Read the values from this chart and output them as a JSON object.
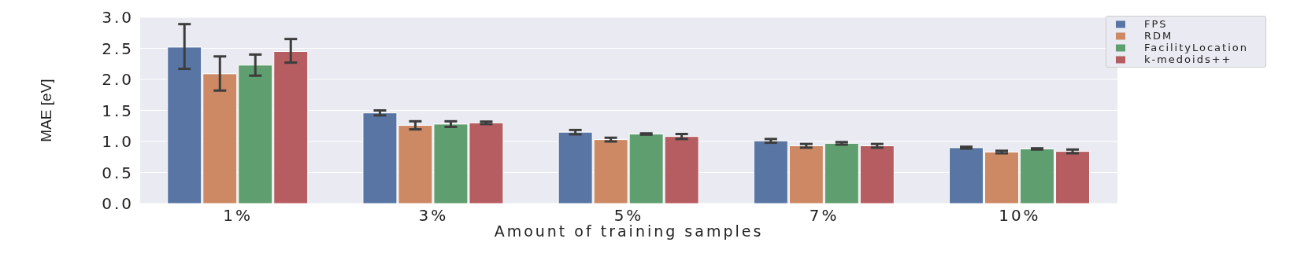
{
  "chart_data": {
    "type": "bar",
    "xlabel": "Amount of training samples",
    "ylabel": "MAE [eV]",
    "categories": [
      "1%",
      "3%",
      "5%",
      "7%",
      "10%"
    ],
    "series": [
      {
        "name": "FPS",
        "color": "#5875a4",
        "values": [
          2.52,
          1.46,
          1.15,
          1.01,
          0.9
        ],
        "errors": [
          [
            2.17,
            2.89
          ],
          0.04,
          0.035,
          0.03,
          0.015
        ]
      },
      {
        "name": "RDM",
        "color": "#cc8963",
        "values": [
          2.09,
          1.26,
          1.03,
          0.93,
          0.83
        ],
        "errors": [
          [
            1.82,
            2.37
          ],
          0.065,
          0.03,
          0.03,
          0.02
        ]
      },
      {
        "name": "FacilityLocation",
        "color": "#5f9e6e",
        "values": [
          2.23,
          1.28,
          1.12,
          0.97,
          0.88
        ],
        "errors": [
          [
            2.06,
            2.4
          ],
          0.045,
          0.01,
          0.02,
          0.01
        ]
      },
      {
        "name": "k-medoids++",
        "color": "#b55d60",
        "values": [
          2.45,
          1.3,
          1.08,
          0.93,
          0.84
        ],
        "errors": [
          [
            2.27,
            2.65
          ],
          0.02,
          0.04,
          0.03,
          0.03
        ]
      }
    ],
    "ylim": [
      0,
      3
    ],
    "yticks": [
      {
        "value": 0,
        "label": "0.0"
      },
      {
        "value": 0.5,
        "label": "0.5"
      },
      {
        "value": 1,
        "label": "1.0"
      },
      {
        "value": 1.5,
        "label": "1.5"
      },
      {
        "value": 2,
        "label": "2.0"
      },
      {
        "value": 2.5,
        "label": "2.5"
      },
      {
        "value": 3,
        "label": "3.0"
      }
    ],
    "grid": "y",
    "legend": "top right"
  }
}
